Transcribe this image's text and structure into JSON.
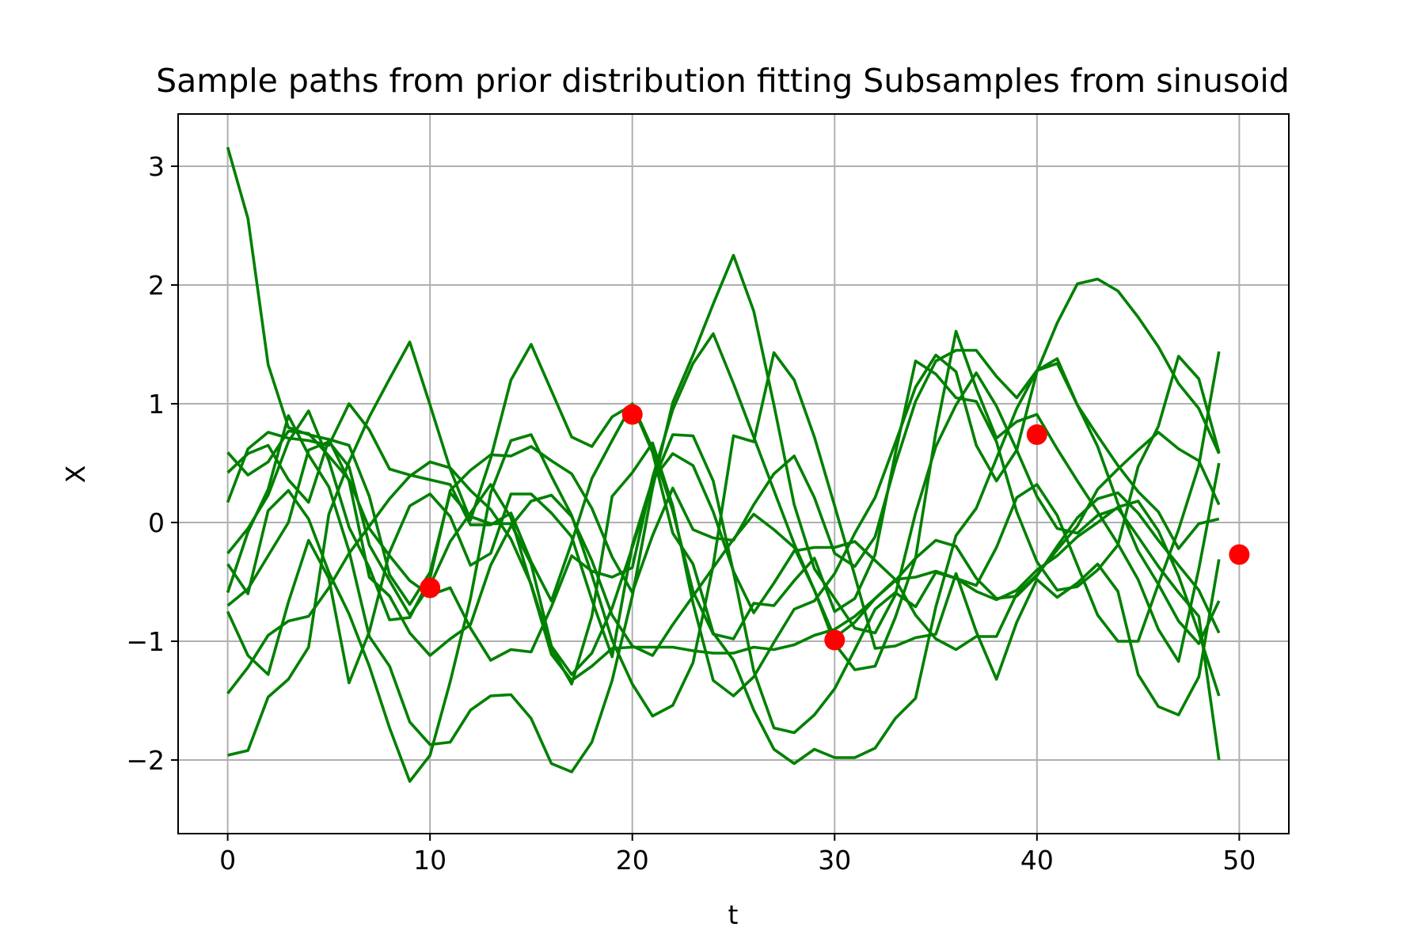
{
  "chart_data": {
    "type": "line",
    "title": "Sample paths from prior distribution fitting Subsamples from sinusoid",
    "xlabel": "t",
    "ylabel": "X",
    "xlim": [
      -2.45,
      52.45
    ],
    "ylim": [
      -2.62,
      3.44
    ],
    "xticks": [
      "0",
      "10",
      "20",
      "30",
      "40",
      "50"
    ],
    "xtick_values": [
      0,
      10,
      20,
      30,
      40,
      50
    ],
    "yticks": [
      "−2",
      "−1",
      "0",
      "1",
      "2",
      "3"
    ],
    "ytick_values": [
      -2,
      -1,
      0,
      1,
      2,
      3
    ],
    "grid": true,
    "line_color": "#008000",
    "point_color": "#ff0000",
    "x": [
      0,
      1,
      2,
      3,
      4,
      5,
      6,
      7,
      8,
      9,
      10,
      11,
      12,
      13,
      14,
      15,
      16,
      17,
      18,
      19,
      20,
      21,
      22,
      23,
      24,
      25,
      26,
      27,
      28,
      29,
      30,
      31,
      32,
      33,
      34,
      35,
      36,
      37,
      38,
      39,
      40,
      41,
      42,
      43,
      44,
      45,
      46,
      47,
      48,
      49
    ],
    "series": [
      {
        "values": [
          3.16,
          2.56,
          1.33,
          0.8,
          0.74,
          0.7,
          0.35,
          -0.46,
          -0.62,
          -0.93,
          -1.12,
          -0.98,
          -0.86,
          -0.36,
          -0.03,
          0.18,
          0.23,
          0.05,
          -0.32,
          -0.78,
          -1.04,
          -1.12,
          -0.86,
          -0.62,
          -0.38,
          -0.14,
          0.07,
          -0.06,
          -0.21,
          -0.57,
          -0.97,
          -0.84,
          -0.64,
          -0.48,
          -0.46,
          -0.41,
          -0.47,
          -0.58,
          -0.65,
          -0.57,
          -0.4,
          -0.28,
          -0.12,
          0.0,
          0.13,
          0.18,
          -0.07,
          -0.45,
          -0.93,
          -1.46
        ]
      },
      {
        "values": [
          0.42,
          0.58,
          0.65,
          0.36,
          0.17,
          0.7,
          0.65,
          0.22,
          -0.44,
          -0.69,
          -0.42,
          0.25,
          0.05,
          -0.01,
          -0.01,
          -0.35,
          -1.04,
          -1.28,
          -1.1,
          -0.72,
          -0.21,
          0.33,
          0.74,
          0.73,
          0.35,
          -0.42,
          -1.25,
          -1.73,
          -1.77,
          -1.62,
          -1.4,
          -1.07,
          -0.73,
          -0.59,
          -0.71,
          -0.42,
          -0.47,
          -0.53,
          -0.21,
          0.21,
          0.32,
          0.06,
          -0.36,
          -0.78,
          -1.0,
          -1.0,
          -0.52,
          -0.06,
          0.48,
          1.44
        ]
      },
      {
        "values": [
          -0.59,
          -0.08,
          0.28,
          0.9,
          0.57,
          0.3,
          -0.24,
          -0.96,
          -1.21,
          -1.68,
          -1.87,
          -1.85,
          -1.58,
          -1.46,
          -1.45,
          -1.65,
          -2.03,
          -2.1,
          -1.85,
          -1.33,
          -0.62,
          0.29,
          1.01,
          1.41,
          1.84,
          2.25,
          1.78,
          0.99,
          0.15,
          -0.39,
          -0.64,
          -0.89,
          -0.93,
          -0.61,
          0.08,
          0.64,
          0.99,
          1.26,
          0.98,
          0.61,
          0.22,
          -0.05,
          -0.09,
          0.06,
          0.12,
          -0.12,
          -0.37,
          -0.59,
          -0.79,
          -2.0
        ]
      },
      {
        "values": [
          -0.7,
          -0.56,
          -0.28,
          0.0,
          0.61,
          0.68,
          0.47,
          -0.19,
          -0.49,
          -0.78,
          -0.53,
          -0.16,
          0.08,
          0.32,
          0.04,
          -0.53,
          -1.11,
          -1.33,
          -1.21,
          -1.06,
          -1.05,
          -1.05,
          -1.05,
          -1.08,
          -1.1,
          -1.1,
          -1.05,
          -1.07,
          -1.03,
          -0.95,
          -0.9,
          -0.79,
          -0.64,
          -0.49,
          -0.3,
          -0.15,
          -0.2,
          -0.47,
          -0.64,
          -0.62,
          -0.45,
          -0.2,
          0.04,
          0.2,
          0.25,
          0.08,
          -0.15,
          -0.36,
          -0.57,
          -0.93
        ]
      },
      {
        "values": [
          0.17,
          0.62,
          0.76,
          0.71,
          0.69,
          0.65,
          1.0,
          0.78,
          0.45,
          0.4,
          0.36,
          0.32,
          -0.02,
          -0.02,
          0.08,
          -0.33,
          -0.66,
          -0.17,
          0.37,
          0.69,
          1.0,
          0.62,
          0.1,
          -0.58,
          -0.94,
          -0.98,
          -0.68,
          -0.7,
          -0.49,
          -0.3,
          -0.75,
          -0.64,
          -0.27,
          0.58,
          1.36,
          1.25,
          1.05,
          1.02,
          0.68,
          0.09,
          -0.33,
          -0.57,
          -0.54,
          -0.4,
          -0.19,
          0.47,
          0.81,
          1.4,
          1.21,
          0.59
        ]
      },
      {
        "values": [
          -0.26,
          -0.05,
          0.23,
          0.68,
          0.94,
          0.52,
          -0.04,
          -0.38,
          -0.82,
          -0.8,
          -0.47,
          0.27,
          0.44,
          0.57,
          0.56,
          0.64,
          0.52,
          0.41,
          0.12,
          -0.29,
          -0.59,
          -0.11,
          0.29,
          -0.06,
          -0.13,
          -0.15,
          0.15,
          0.41,
          0.56,
          0.21,
          -0.26,
          -0.37,
          -0.12,
          0.49,
          1.02,
          1.36,
          1.45,
          1.45,
          1.23,
          1.05,
          1.28,
          1.38,
          0.99,
          0.73,
          0.48,
          0.26,
          0.09,
          -0.22,
          -0.01,
          0.03
        ]
      },
      {
        "values": [
          -0.75,
          -1.12,
          -1.28,
          -0.67,
          -0.15,
          -0.47,
          -1.35,
          -0.92,
          -0.25,
          0.14,
          0.24,
          0.05,
          -0.36,
          -0.26,
          0.24,
          0.24,
          0.08,
          -0.12,
          -0.65,
          -1.13,
          -0.19,
          0.36,
          0.58,
          0.48,
          0.09,
          -0.41,
          -0.76,
          -0.51,
          -0.24,
          -0.21,
          -0.21,
          -0.16,
          -0.32,
          -0.48,
          -0.78,
          -0.98,
          -1.07,
          -0.96,
          -0.96,
          -0.6,
          -0.44,
          -0.23,
          -0.03,
          0.28,
          0.45,
          0.61,
          0.76,
          0.62,
          0.52,
          0.15
        ]
      },
      {
        "values": [
          -1.44,
          -1.22,
          -0.95,
          -0.83,
          -0.79,
          -0.55,
          -0.26,
          -0.03,
          0.2,
          0.39,
          0.51,
          0.46,
          0.27,
          0.11,
          -0.14,
          -0.52,
          -1.06,
          -1.36,
          -0.79,
          0.22,
          0.42,
          0.67,
          0.14,
          -0.68,
          -1.33,
          -1.46,
          -1.3,
          -1.01,
          -0.73,
          -0.66,
          -0.43,
          -0.09,
          0.21,
          0.67,
          1.14,
          1.41,
          1.27,
          0.65,
          0.35,
          0.61,
          1.27,
          1.68,
          2.01,
          2.05,
          1.95,
          1.73,
          1.48,
          1.17,
          0.96,
          0.58
        ]
      },
      {
        "values": [
          -1.96,
          -1.92,
          -1.47,
          -1.32,
          -1.05,
          0.07,
          0.51,
          0.89,
          1.21,
          1.52,
          0.99,
          0.45,
          0.02,
          0.54,
          1.2,
          1.5,
          1.11,
          0.72,
          0.64,
          0.89,
          0.99,
          0.59,
          -0.09,
          -0.35,
          -0.93,
          -1.16,
          -1.58,
          -1.91,
          -2.03,
          -1.91,
          -1.98,
          -1.98,
          -1.9,
          -1.65,
          -1.48,
          -0.71,
          -0.11,
          0.12,
          0.54,
          0.96,
          1.28,
          1.34,
          0.99,
          0.64,
          0.16,
          -0.24,
          -0.52,
          -0.83,
          -1.02,
          -0.66
        ]
      },
      {
        "values": [
          -0.35,
          -0.6,
          0.1,
          0.27,
          0.03,
          -0.42,
          -0.77,
          -1.21,
          -1.73,
          -2.18,
          -1.96,
          -1.34,
          -0.64,
          0.25,
          0.69,
          0.74,
          0.39,
          0.06,
          -0.44,
          -0.99,
          -1.36,
          -1.63,
          -1.54,
          -1.18,
          -0.36,
          0.73,
          0.68,
          1.43,
          1.2,
          0.72,
          0.14,
          -0.45,
          -1.06,
          -1.04,
          -0.97,
          -0.94,
          -0.43,
          -0.92,
          -1.32,
          -0.84,
          -0.48,
          -0.63,
          -0.51,
          -0.35,
          -0.58,
          -1.28,
          -1.55,
          -1.62,
          -1.3,
          -0.31
        ]
      },
      {
        "values": [
          0.59,
          0.4,
          0.51,
          0.77,
          0.75,
          0.56,
          0.36,
          -0.05,
          -0.28,
          -0.49,
          -0.61,
          -0.55,
          -0.89,
          -1.16,
          -1.07,
          -1.09,
          -0.71,
          -0.28,
          -0.41,
          -0.46,
          -0.38,
          0.38,
          0.95,
          1.34,
          1.59,
          1.17,
          0.72,
          0.27,
          -0.18,
          -0.57,
          -1.02,
          -1.24,
          -1.21,
          -0.8,
          -0.3,
          0.76,
          1.61,
          1.13,
          0.71,
          0.85,
          0.91,
          0.62,
          0.35,
          0.09,
          -0.18,
          -0.48,
          -0.9,
          -1.17,
          -0.39,
          0.5
        ]
      }
    ],
    "points": {
      "x": [
        10,
        20,
        30,
        40,
        50
      ],
      "y": [
        -0.55,
        0.91,
        -0.99,
        0.74,
        -0.27
      ]
    }
  }
}
